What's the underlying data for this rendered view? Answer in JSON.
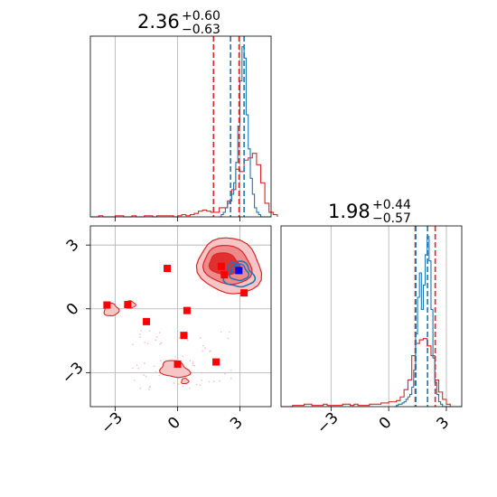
{
  "chart_data": [
    {
      "type": "histogram",
      "panel": "marginal-1",
      "title_value": "2.36",
      "title_upper": "+0.60",
      "title_lower": "−0.63",
      "xlim": [
        -4.2,
        4.5
      ],
      "grid": true,
      "series": [
        {
          "color": "#d62728",
          "bin_start": -4.2,
          "bin_width": 0.2,
          "counts": [
            0,
            0,
            1,
            0,
            0,
            0,
            1,
            1,
            0,
            0,
            1,
            0,
            0,
            1,
            1,
            0,
            1,
            1,
            1,
            1,
            0,
            1,
            2,
            1,
            2,
            3,
            5,
            6,
            5,
            4,
            4,
            8,
            8,
            14,
            24,
            42,
            40,
            50,
            52,
            56,
            46,
            30,
            12,
            4,
            2
          ]
        },
        {
          "color": "#1f77b4",
          "bin_start": 2.0,
          "bin_width": 0.1,
          "counts": [
            0,
            2,
            4,
            8,
            12,
            14,
            20,
            30,
            48,
            80,
            120,
            150,
            140,
            90,
            60,
            34,
            20,
            8,
            4,
            2,
            0,
            0,
            0,
            0,
            0
          ]
        }
      ],
      "quantile_lines": [
        {
          "color": "#d62728",
          "x": 1.73
        },
        {
          "color": "#d62728",
          "x": 2.96
        },
        {
          "color": "#1f77b4",
          "x": 2.55
        },
        {
          "color": "#1f77b4",
          "x": 3.2
        }
      ]
    },
    {
      "type": "histogram",
      "panel": "marginal-2",
      "title_value": "1.98",
      "title_upper": "+0.44",
      "title_lower": "−0.57",
      "xlim": [
        -5.6,
        3.8
      ],
      "xticks": [
        -3,
        0,
        3
      ],
      "xtick_labels": [
        "−3",
        "0",
        "3"
      ],
      "grid": true,
      "series": [
        {
          "color": "#d62728",
          "bin_start": -5.6,
          "bin_width": 0.2,
          "counts": [
            0,
            0,
            0,
            1,
            1,
            1,
            2,
            2,
            1,
            1,
            1,
            2,
            1,
            1,
            1,
            1,
            2,
            2,
            1,
            2,
            1,
            1,
            1,
            2,
            2,
            2,
            3,
            3,
            4,
            4,
            5,
            8,
            14,
            22,
            42,
            52,
            55,
            56,
            50,
            42,
            22,
            12,
            6,
            2,
            0,
            0,
            0
          ]
        },
        {
          "color": "#1f77b4",
          "bin_start": 0.3,
          "bin_width": 0.1,
          "counts": [
            0,
            1,
            2,
            2,
            3,
            4,
            6,
            8,
            10,
            16,
            30,
            60,
            90,
            110,
            80,
            100,
            125,
            140,
            120,
            80,
            40,
            20,
            10,
            4,
            2,
            0,
            0,
            0,
            0,
            0,
            0,
            0,
            0,
            0,
            0
          ]
        }
      ],
      "quantile_lines": [
        {
          "color": "#d62728",
          "x": 1.38
        },
        {
          "color": "#d62728",
          "x": 2.42
        },
        {
          "color": "#1f77b4",
          "x": 1.41
        },
        {
          "color": "#1f77b4",
          "x": 2.02
        }
      ]
    },
    {
      "type": "scatter",
      "panel": "joint",
      "xlim": [
        -4.2,
        4.5
      ],
      "ylim": [
        -4.6,
        3.9
      ],
      "xticks": [
        -3,
        0,
        3
      ],
      "xtick_labels": [
        "−3",
        "0",
        "3"
      ],
      "yticks": [
        -3,
        0,
        3
      ],
      "ytick_labels": [
        "−3",
        "0",
        "3"
      ],
      "grid": true,
      "red_points": {
        "color": "#ff0000",
        "x": [
          -3.4,
          -2.4,
          -1.5,
          -0.5,
          0.45,
          0.3,
          0.0,
          1.85,
          2.1,
          2.25,
          3.2
        ],
        "y": [
          0.18,
          0.2,
          -0.6,
          1.9,
          -0.08,
          -1.25,
          -2.6,
          -2.5,
          2.0,
          1.6,
          0.75
        ]
      },
      "blue_points": {
        "color": "#0000ff",
        "x": [
          2.95
        ],
        "y": [
          1.8
        ]
      },
      "red_contour_levels": [
        {
          "level": "outer",
          "fill": "#f6c6c6"
        },
        {
          "level": "middle",
          "fill": "#ee8a8a"
        },
        {
          "level": "inner",
          "fill": "#e03030"
        }
      ],
      "blue_contour_color": "#1f77b4"
    }
  ]
}
